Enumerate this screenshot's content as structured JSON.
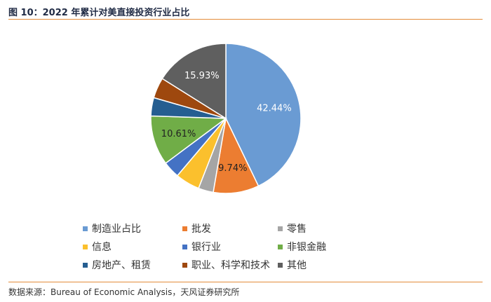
{
  "header": {
    "title": "图 10：2022 年累计对美直接投资行业占比"
  },
  "footer": {
    "source": "数据来源：Bureau of Economic Analysis，天风证券研究所"
  },
  "chart_data": {
    "type": "pie",
    "title": "",
    "slices": [
      {
        "name": "制造业占比",
        "value": 42.44,
        "label": "42.44%",
        "color": "#6a9bd3",
        "label_color": "#ffffff"
      },
      {
        "name": "批发",
        "value": 9.74,
        "label": "9.74%",
        "color": "#ec7d31",
        "label_color": "#222222"
      },
      {
        "name": "零售",
        "value": 3.2,
        "label": "",
        "color": "#a5a5a5",
        "label_color": "#222222"
      },
      {
        "name": "信息",
        "value": 5.2,
        "label": "",
        "color": "#fbc02d",
        "label_color": "#222222"
      },
      {
        "name": "银行业",
        "value": 3.6,
        "label": "",
        "color": "#4472c4",
        "label_color": "#222222"
      },
      {
        "name": "非银金融",
        "value": 10.61,
        "label": "10.61%",
        "color": "#70ad47",
        "label_color": "#222222"
      },
      {
        "name": "房地产、租赁",
        "value": 3.9,
        "label": "",
        "color": "#255e91",
        "label_color": "#222222"
      },
      {
        "name": "职业、科学和技术",
        "value": 4.4,
        "label": "",
        "color": "#9e480e",
        "label_color": "#222222"
      },
      {
        "name": "其他",
        "value": 15.93,
        "label": "15.93%",
        "color": "#5f5f5f",
        "label_color": "#ffffff"
      }
    ],
    "legend_placement": "bottom"
  }
}
